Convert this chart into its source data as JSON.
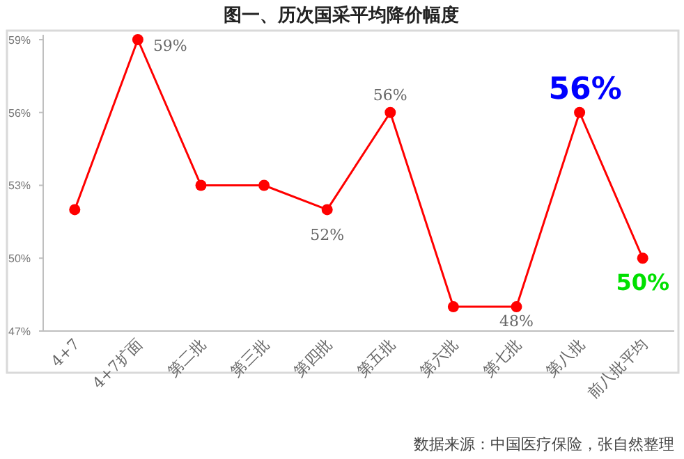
{
  "chart_data": {
    "type": "line",
    "title": "图一、历次国采平均降价幅度",
    "categories": [
      "4+7",
      "4+7扩面",
      "第二批",
      "第三批",
      "第四批",
      "第五批",
      "第六批",
      "第七批",
      "第八批",
      "前八批平均"
    ],
    "series": [
      {
        "color": "#ff0000",
        "values": [
          52,
          59,
          53,
          53,
          52,
          56,
          48,
          48,
          56,
          50
        ],
        "value_labels": [
          null,
          "59%",
          null,
          null,
          "52%",
          "56%",
          null,
          "48%",
          "56%",
          "50%"
        ]
      }
    ],
    "ylim": [
      47,
      59.2
    ],
    "yticks": [
      {
        "value": 47,
        "label": "47%"
      },
      {
        "value": 50,
        "label": "50%"
      },
      {
        "value": 53,
        "label": "53%"
      },
      {
        "value": 56,
        "label": "56%"
      },
      {
        "value": 59,
        "label": "59%"
      }
    ],
    "marker": "circle",
    "line_style": "solid",
    "annotations": [
      "数据来源：中国医疗保险，张自然整理"
    ]
  }
}
